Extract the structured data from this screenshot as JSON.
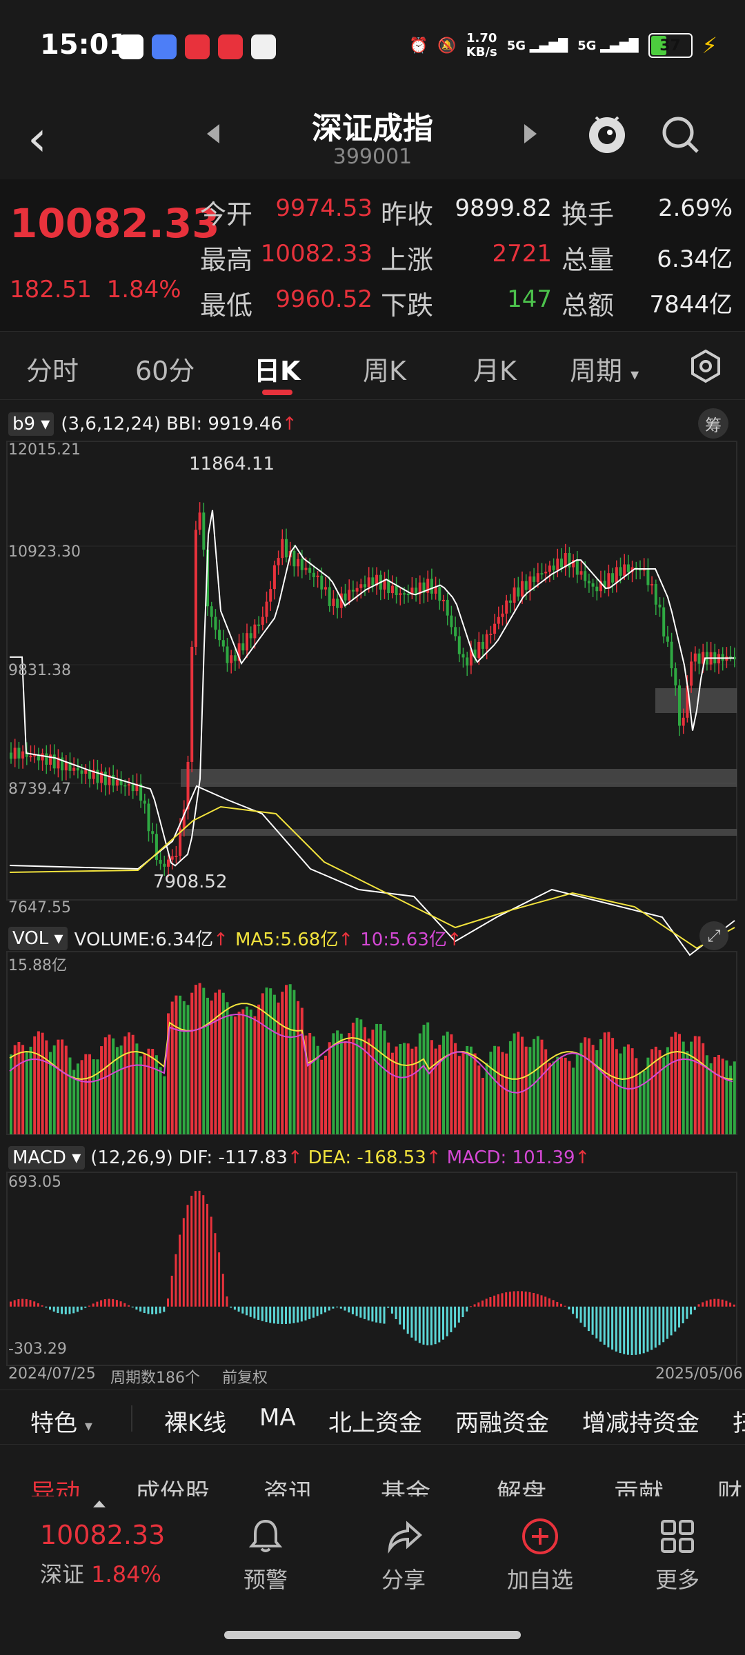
{
  "status": {
    "time": "15:01",
    "net_speed": "1.70\nKB/s",
    "net_speed_l1": "1.70",
    "net_speed_l2": "KB/s",
    "sig1": "5G",
    "sig2": "5G",
    "battery": "37"
  },
  "header": {
    "title": "深证成指",
    "code": "399001"
  },
  "quote": {
    "price": "10082.33",
    "change": "182.51",
    "change_pct": "1.84%",
    "rows": [
      [
        {
          "l": "今开",
          "v": "9974.53",
          "c": "red"
        },
        {
          "l": "昨收",
          "v": "9899.82",
          "c": "white"
        },
        {
          "l": "换手",
          "v": "2.69%",
          "c": "white"
        }
      ],
      [
        {
          "l": "最高",
          "v": "10082.33",
          "c": "red"
        },
        {
          "l": "上涨",
          "v": "2721",
          "c": "red"
        },
        {
          "l": "总量",
          "v": "6.34亿",
          "c": "white"
        }
      ],
      [
        {
          "l": "最低",
          "v": "9960.52",
          "c": "red"
        },
        {
          "l": "下跌",
          "v": "147",
          "c": "green"
        },
        {
          "l": "总额",
          "v": "7844亿",
          "c": "white"
        }
      ]
    ]
  },
  "tabs": [
    "分时",
    "60分",
    "日K",
    "周K",
    "月K",
    "周期"
  ],
  "active_tab": "日K",
  "main_chart": {
    "indicator": "b9",
    "params": "(3,6,12,24) BBI: 9919.46",
    "arrow": "↑",
    "chip_label": "筹",
    "y_labels": [
      "12015.21",
      "10923.30",
      "9831.38",
      "8739.47",
      "7647.55"
    ],
    "high_label": "11864.11",
    "low_label": "7908.52"
  },
  "vol_chart": {
    "indicator": "VOL",
    "text": "VOLUME:6.34亿",
    "ma5": "MA5:5.68亿",
    "ma10": "10:5.63亿",
    "arrow": "↑",
    "max": "15.88亿"
  },
  "macd_chart": {
    "indicator": "MACD",
    "params": "(12,26,9)",
    "dif": "DIF: -117.83",
    "dea": "DEA: -168.53",
    "macd": "MACD: 101.39",
    "arrow": "↑",
    "max": "693.05",
    "min": "-303.29"
  },
  "footer_info": {
    "start": "2024/07/25",
    "count": "周期数186个",
    "adj": "前复权",
    "end": "2025/05/06"
  },
  "features": {
    "special": "特色",
    "items": [
      "裸K线",
      "MA",
      "北上资金",
      "两融资金",
      "增减持资金",
      "扫"
    ]
  },
  "subtabs": [
    "异动",
    "成份股",
    "资讯",
    "基金",
    "解盘",
    "贡献",
    "财"
  ],
  "nav": {
    "price": "10082.33",
    "market": "深证",
    "pct": "1.84%",
    "items": [
      "预警",
      "分享",
      "加自选",
      "更多"
    ]
  },
  "colors": {
    "up": "#e8323c",
    "down": "#4cc24c",
    "accent": "#e8323c",
    "bg": "#1a1a1a"
  }
}
